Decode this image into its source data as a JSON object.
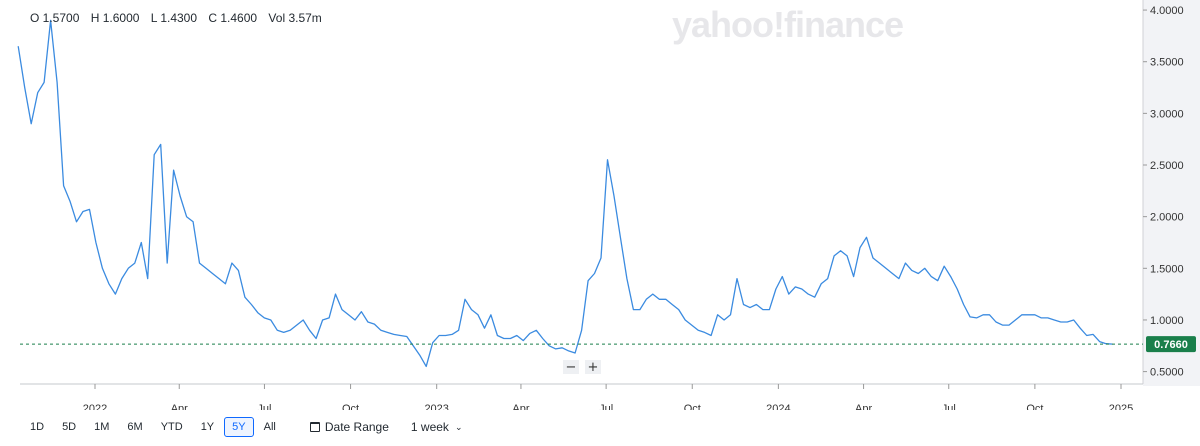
{
  "ohlc": {
    "open": "O 1.5700",
    "high": "H 1.6000",
    "low": "L 1.4300",
    "close": "C 1.4600",
    "vol": "Vol 3.57m"
  },
  "watermark": "yahoo!finance",
  "zoom": {
    "minus": "−",
    "plus": "+"
  },
  "toolbar": {
    "ranges": [
      "1D",
      "5D",
      "1M",
      "6M",
      "YTD",
      "1Y",
      "5Y",
      "All"
    ],
    "active_range": "5Y",
    "date_range_label": "Date Range",
    "interval_label": "1 week"
  },
  "chart_data": {
    "type": "line",
    "x_start": "2021-10-11",
    "x_end": "2024-12-23",
    "y": [
      3.65,
      3.25,
      2.9,
      3.2,
      3.3,
      3.9,
      3.3,
      2.3,
      2.15,
      1.95,
      2.05,
      2.07,
      1.75,
      1.5,
      1.35,
      1.25,
      1.4,
      1.5,
      1.55,
      1.75,
      1.4,
      2.6,
      2.7,
      1.55,
      2.45,
      2.2,
      2.0,
      1.95,
      1.55,
      1.5,
      1.45,
      1.4,
      1.35,
      1.55,
      1.48,
      1.22,
      1.15,
      1.07,
      1.02,
      1.0,
      0.9,
      0.88,
      0.9,
      0.95,
      1.0,
      0.9,
      0.82,
      1.0,
      1.02,
      1.25,
      1.1,
      1.05,
      1.0,
      1.08,
      0.98,
      0.96,
      0.9,
      0.88,
      0.86,
      0.85,
      0.84,
      0.75,
      0.66,
      0.55,
      0.78,
      0.85,
      0.85,
      0.86,
      0.9,
      1.2,
      1.1,
      1.05,
      0.92,
      1.05,
      0.85,
      0.82,
      0.82,
      0.85,
      0.8,
      0.87,
      0.9,
      0.82,
      0.75,
      0.72,
      0.73,
      0.7,
      0.68,
      0.9,
      1.38,
      1.45,
      1.6,
      2.55,
      2.2,
      1.8,
      1.4,
      1.1,
      1.1,
      1.2,
      1.25,
      1.2,
      1.2,
      1.15,
      1.1,
      1.0,
      0.95,
      0.9,
      0.88,
      0.85,
      1.05,
      1.0,
      1.05,
      1.4,
      1.15,
      1.12,
      1.15,
      1.1,
      1.1,
      1.3,
      1.42,
      1.25,
      1.32,
      1.3,
      1.25,
      1.22,
      1.35,
      1.4,
      1.62,
      1.67,
      1.62,
      1.42,
      1.7,
      1.8,
      1.6,
      1.55,
      1.5,
      1.45,
      1.4,
      1.55,
      1.48,
      1.45,
      1.5,
      1.42,
      1.38,
      1.52,
      1.42,
      1.3,
      1.15,
      1.03,
      1.02,
      1.05,
      1.05,
      0.98,
      0.95,
      0.95,
      1.0,
      1.05,
      1.05,
      1.05,
      1.02,
      1.02,
      1.0,
      0.98,
      0.98,
      1.0,
      0.92,
      0.85,
      0.86,
      0.79,
      0.77,
      0.766
    ],
    "last_value": "0.7660",
    "yticks": [
      0.5,
      1.0,
      1.5,
      2.0,
      2.5,
      3.0,
      3.5,
      4.0
    ],
    "ytick_labels": [
      "0.5000",
      "1.0000",
      "1.5000",
      "2.0000",
      "2.5000",
      "3.0000",
      "3.5000",
      "4.0000"
    ],
    "ylim": [
      0.38,
      4.02
    ],
    "xticks": [
      {
        "date": "2022-01-01",
        "label": "2022"
      },
      {
        "date": "2022-04-01",
        "label": "Apr"
      },
      {
        "date": "2022-07-01",
        "label": "Jul"
      },
      {
        "date": "2022-10-01",
        "label": "Oct"
      },
      {
        "date": "2023-01-01",
        "label": "2023"
      },
      {
        "date": "2023-04-01",
        "label": "Apr"
      },
      {
        "date": "2023-07-01",
        "label": "Jul"
      },
      {
        "date": "2023-10-01",
        "label": "Oct"
      },
      {
        "date": "2024-01-01",
        "label": "2024"
      },
      {
        "date": "2024-04-01",
        "label": "Apr"
      },
      {
        "date": "2024-07-01",
        "label": "Jul"
      },
      {
        "date": "2024-10-01",
        "label": "Oct"
      },
      {
        "date": "2025-01-01",
        "label": "2025"
      }
    ],
    "colors": {
      "line": "#3b8be0",
      "last_badge": "#1a7f4b",
      "grid": "#eeeeee"
    }
  }
}
